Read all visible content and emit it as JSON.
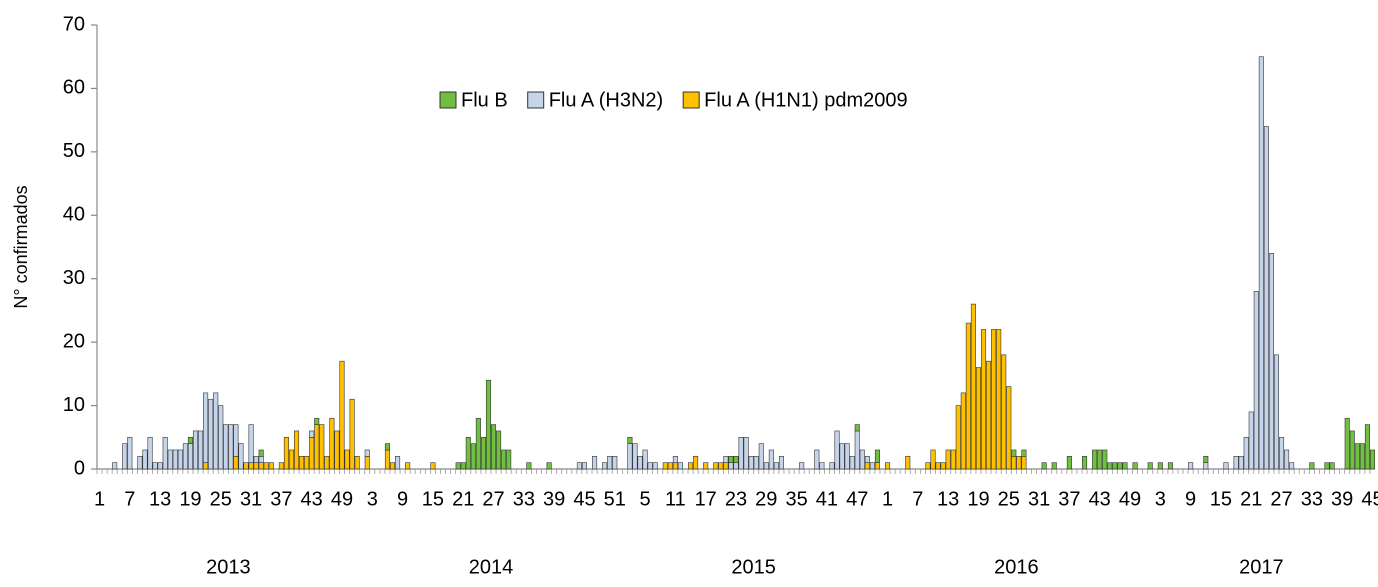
{
  "chart_data": {
    "type": "bar",
    "stacked": true,
    "y_label": "N° confirmados",
    "ylim": [
      0,
      70
    ],
    "yticks": [
      0,
      10,
      20,
      30,
      40,
      50,
      60,
      70
    ],
    "grid": false,
    "legend": "top",
    "years": [
      "2013",
      "2014",
      "2015",
      "2016",
      "2017"
    ],
    "categories": [
      "1",
      null,
      null,
      null,
      null,
      null,
      "7",
      null,
      null,
      null,
      null,
      null,
      "13",
      null,
      null,
      null,
      null,
      null,
      "19",
      null,
      null,
      null,
      null,
      null,
      "25",
      null,
      null,
      null,
      null,
      null,
      "31",
      null,
      null,
      null,
      null,
      null,
      "37",
      null,
      null,
      null,
      null,
      null,
      "43",
      null,
      null,
      null,
      null,
      null,
      "49",
      null,
      null,
      null,
      null,
      null,
      "3",
      null,
      null,
      null,
      null,
      null,
      "9",
      null,
      null,
      null,
      null,
      null,
      "15",
      null,
      null,
      null,
      null,
      null,
      "21",
      null,
      null,
      null,
      null,
      null,
      "27",
      null,
      null,
      null,
      null,
      null,
      "33",
      null,
      null,
      null,
      null,
      null,
      "39",
      null,
      null,
      null,
      null,
      null,
      "45",
      null,
      null,
      null,
      null,
      null,
      "51",
      null,
      null,
      null,
      null,
      null,
      "5",
      null,
      null,
      null,
      null,
      null,
      "11",
      null,
      null,
      null,
      null,
      null,
      "17",
      null,
      null,
      null,
      null,
      null,
      "23",
      null,
      null,
      null,
      null,
      null,
      "29",
      null,
      null,
      null,
      null,
      null,
      "35",
      null,
      null,
      null,
      null,
      null,
      "41",
      null,
      null,
      null,
      null,
      null,
      "47",
      null,
      null,
      null,
      null,
      null,
      "1",
      null,
      null,
      null,
      null,
      null,
      "7",
      null,
      null,
      null,
      null,
      null,
      "13",
      null,
      null,
      null,
      null,
      null,
      "19",
      null,
      null,
      null,
      null,
      null,
      "25",
      null,
      null,
      null,
      null,
      null,
      "31",
      null,
      null,
      null,
      null,
      null,
      "37",
      null,
      null,
      null,
      null,
      null,
      "43",
      null,
      null,
      null,
      null,
      null,
      "49",
      null,
      null,
      null,
      null,
      null,
      "3",
      null,
      null,
      null,
      null,
      null,
      "9",
      null,
      null,
      null,
      null,
      null,
      "15",
      null,
      null,
      null,
      null,
      null,
      "21",
      null,
      null,
      null,
      null,
      null,
      "27",
      null,
      null,
      null,
      null,
      null,
      "33",
      null,
      null,
      null,
      null,
      null,
      "39",
      null,
      null,
      null,
      null,
      null,
      "45"
    ],
    "series": [
      {
        "name": "Flu B",
        "color": "#70bf41",
        "values": [
          0,
          0,
          0,
          0,
          0,
          0,
          0,
          0,
          0,
          0,
          0,
          0,
          0,
          0,
          0,
          0,
          0,
          0,
          1,
          0,
          0,
          0,
          0,
          0,
          0,
          0,
          0,
          0,
          0,
          0,
          0,
          0,
          1,
          0,
          0,
          0,
          0,
          0,
          0,
          0,
          0,
          0,
          0,
          1,
          0,
          0,
          0,
          0,
          0,
          0,
          0,
          0,
          0,
          0,
          0,
          0,
          0,
          1,
          0,
          0,
          0,
          0,
          0,
          0,
          0,
          0,
          0,
          0,
          0,
          0,
          0,
          1,
          1,
          5,
          4,
          8,
          5,
          14,
          7,
          6,
          3,
          3,
          0,
          0,
          0,
          1,
          0,
          0,
          0,
          1,
          0,
          0,
          0,
          0,
          0,
          0,
          0,
          0,
          0,
          0,
          0,
          0,
          0,
          0,
          0,
          1,
          0,
          0,
          0,
          0,
          0,
          0,
          0,
          0,
          0,
          0,
          0,
          0,
          0,
          0,
          0,
          0,
          0,
          0,
          0,
          1,
          1,
          0,
          0,
          0,
          0,
          0,
          0,
          0,
          0,
          0,
          0,
          0,
          0,
          0,
          0,
          0,
          0,
          0,
          0,
          0,
          0,
          0,
          0,
          0,
          1,
          0,
          0,
          0,
          2,
          0,
          0,
          0,
          0,
          0,
          0,
          0,
          0,
          0,
          0,
          0,
          0,
          0,
          0,
          0,
          0,
          0,
          0,
          0,
          0,
          0,
          0,
          0,
          0,
          0,
          0,
          1,
          0,
          1,
          0,
          0,
          0,
          1,
          0,
          1,
          0,
          0,
          2,
          0,
          0,
          2,
          0,
          3,
          3,
          3,
          1,
          1,
          1,
          1,
          0,
          1,
          0,
          0,
          1,
          0,
          1,
          0,
          1,
          0,
          0,
          0,
          0,
          0,
          0,
          1,
          0,
          0,
          0,
          0,
          0,
          0,
          0,
          0,
          0,
          0,
          0,
          0,
          0,
          0,
          0,
          0,
          0,
          0,
          0,
          0,
          1,
          0,
          0,
          1,
          1,
          0,
          0,
          8,
          6,
          4,
          4,
          7,
          3
        ]
      },
      {
        "name": "Flu A (H3N2)",
        "color": "#c6d4ea",
        "values": [
          0,
          0,
          0,
          1,
          0,
          4,
          5,
          0,
          2,
          3,
          5,
          1,
          1,
          5,
          3,
          3,
          3,
          4,
          4,
          6,
          6,
          11,
          11,
          12,
          10,
          7,
          7,
          5,
          4,
          0,
          6,
          1,
          1,
          0,
          0,
          0,
          0,
          0,
          0,
          0,
          0,
          0,
          1,
          0,
          0,
          0,
          0,
          0,
          0,
          0,
          0,
          0,
          0,
          1,
          0,
          0,
          0,
          0,
          0,
          2,
          0,
          0,
          0,
          0,
          0,
          0,
          0,
          0,
          0,
          0,
          0,
          0,
          0,
          0,
          0,
          0,
          0,
          0,
          0,
          0,
          0,
          0,
          0,
          0,
          0,
          0,
          0,
          0,
          0,
          0,
          0,
          0,
          0,
          0,
          0,
          1,
          1,
          0,
          2,
          0,
          1,
          2,
          2,
          0,
          0,
          4,
          4,
          2,
          3,
          1,
          1,
          0,
          0,
          0,
          1,
          1,
          0,
          0,
          0,
          0,
          0,
          0,
          0,
          0,
          1,
          1,
          1,
          5,
          5,
          2,
          2,
          4,
          1,
          3,
          1,
          2,
          0,
          0,
          0,
          1,
          0,
          0,
          3,
          1,
          0,
          1,
          6,
          4,
          4,
          2,
          6,
          3,
          1,
          1,
          0,
          0,
          0,
          0,
          0,
          0,
          0,
          0,
          0,
          0,
          0,
          0,
          0,
          0,
          0,
          0,
          0,
          0,
          0,
          0,
          0,
          0,
          0,
          0,
          0,
          0,
          0,
          0,
          0,
          0,
          0,
          0,
          0,
          0,
          0,
          0,
          0,
          0,
          0,
          0,
          0,
          0,
          0,
          0,
          0,
          0,
          0,
          0,
          0,
          0,
          0,
          0,
          0,
          0,
          0,
          0,
          0,
          0,
          0,
          0,
          0,
          0,
          1,
          0,
          0,
          1,
          0,
          0,
          0,
          1,
          0,
          2,
          2,
          5,
          9,
          28,
          65,
          54,
          34,
          18,
          5,
          3,
          1,
          0,
          0,
          0,
          0,
          0,
          0,
          0,
          0,
          0,
          0,
          0,
          0,
          0,
          0,
          0,
          0
        ]
      },
      {
        "name": "Flu A (H1N1) pdm2009",
        "color": "#ffc000",
        "values": [
          0,
          0,
          0,
          0,
          0,
          0,
          0,
          0,
          0,
          0,
          0,
          0,
          0,
          0,
          0,
          0,
          0,
          0,
          0,
          0,
          0,
          1,
          0,
          0,
          0,
          0,
          0,
          2,
          0,
          1,
          1,
          1,
          1,
          1,
          1,
          0,
          1,
          5,
          3,
          6,
          2,
          2,
          5,
          7,
          7,
          2,
          8,
          6,
          17,
          3,
          11,
          2,
          0,
          2,
          0,
          0,
          0,
          3,
          1,
          0,
          0,
          1,
          0,
          0,
          0,
          0,
          1,
          0,
          0,
          0,
          0,
          0,
          0,
          0,
          0,
          0,
          0,
          0,
          0,
          0,
          0,
          0,
          0,
          0,
          0,
          0,
          0,
          0,
          0,
          0,
          0,
          0,
          0,
          0,
          0,
          0,
          0,
          0,
          0,
          0,
          0,
          0,
          0,
          0,
          0,
          0,
          0,
          0,
          0,
          0,
          0,
          0,
          1,
          1,
          1,
          0,
          0,
          1,
          2,
          0,
          1,
          0,
          1,
          1,
          1,
          0,
          0,
          0,
          0,
          0,
          0,
          0,
          0,
          0,
          0,
          0,
          0,
          0,
          0,
          0,
          0,
          0,
          0,
          0,
          0,
          0,
          0,
          0,
          0,
          0,
          0,
          0,
          1,
          0,
          1,
          0,
          1,
          0,
          0,
          0,
          2,
          0,
          0,
          0,
          1,
          3,
          1,
          1,
          3,
          3,
          10,
          12,
          23,
          26,
          16,
          22,
          17,
          22,
          22,
          18,
          13,
          2,
          2,
          2,
          0,
          0,
          0,
          0,
          0,
          0,
          0,
          0,
          0,
          0,
          0,
          0,
          0,
          0,
          0,
          0,
          0,
          0,
          0,
          0,
          0,
          0,
          0,
          0,
          0,
          0,
          0,
          0,
          0,
          0,
          0,
          0,
          0,
          0,
          0,
          0,
          0,
          0,
          0,
          0,
          0,
          0,
          0,
          0,
          0,
          0,
          0,
          0,
          0,
          0,
          0,
          0,
          0,
          0,
          0,
          0,
          0,
          0,
          0,
          0,
          0,
          0,
          0,
          0,
          0,
          0,
          0,
          0,
          0
        ]
      }
    ]
  }
}
